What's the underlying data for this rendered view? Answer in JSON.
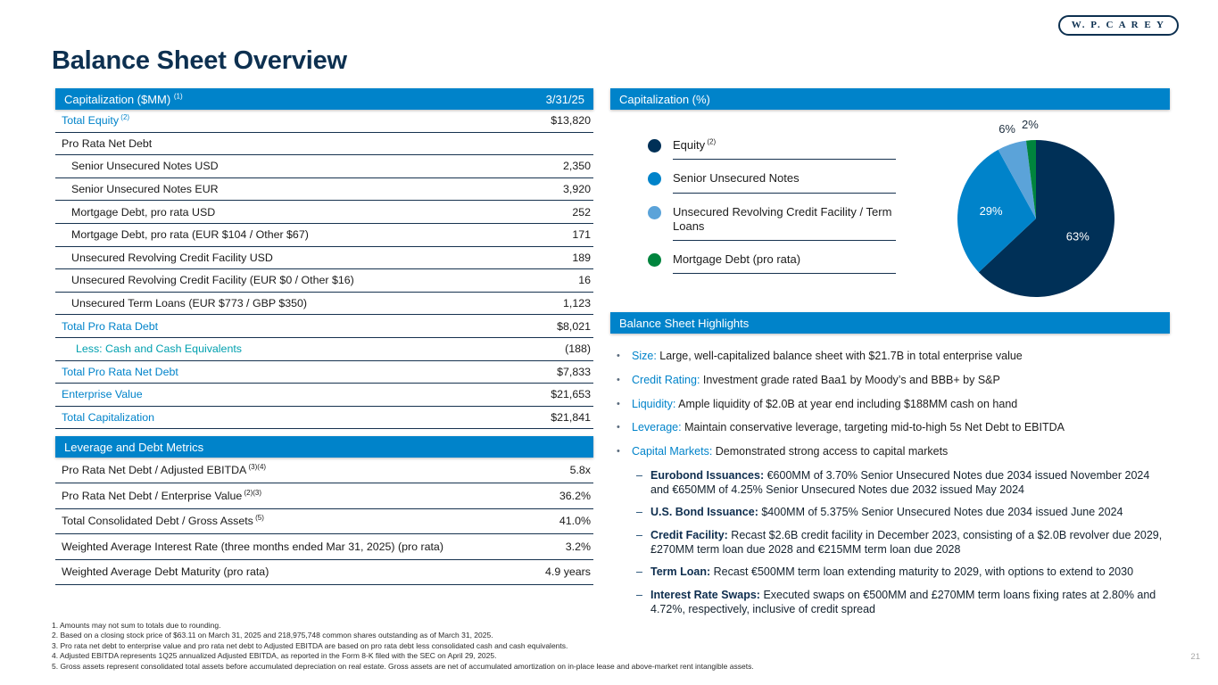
{
  "logo_text": "W. P. C A R E Y",
  "title": "Balance Sheet Overview",
  "page": {
    "number": "21"
  },
  "cap_table": {
    "title": "Capitalization ($MM)",
    "title_sup": "(1)",
    "date": "3/31/25",
    "rows": [
      {
        "label": "Total Equity",
        "sup": "(2)",
        "value": "$13,820",
        "style": "blue"
      },
      {
        "label": "Pro Rata Net Debt",
        "value": "",
        "style": "section"
      },
      {
        "label": "Senior Unsecured Notes USD",
        "value": "2,350",
        "style": "item"
      },
      {
        "label": "Senior Unsecured Notes EUR",
        "value": "3,920",
        "style": "item"
      },
      {
        "label": "Mortgage Debt, pro rata USD",
        "value": "252",
        "style": "item"
      },
      {
        "label": "Mortgage Debt, pro rata (EUR $104 / Other $67)",
        "value": "171",
        "style": "item"
      },
      {
        "label": "Unsecured Revolving Credit Facility USD",
        "value": "189",
        "style": "item"
      },
      {
        "label": "Unsecured Revolving Credit Facility (EUR $0 / Other $16)",
        "value": "16",
        "style": "item"
      },
      {
        "label": "Unsecured Term Loans (EUR $773 / GBP $350)",
        "value": "1,123",
        "style": "item"
      },
      {
        "label": "Total Pro Rata Debt",
        "value": "$8,021",
        "style": "blue"
      },
      {
        "label": "Less: Cash and Cash Equivalents",
        "value": "(188)",
        "style": "teal"
      },
      {
        "label": "Total Pro Rata Net Debt",
        "value": "$7,833",
        "style": "blue"
      },
      {
        "label": "Enterprise Value",
        "value": "$21,653",
        "style": "blue"
      },
      {
        "label": "Total Capitalization",
        "value": "$21,841",
        "style": "blue"
      }
    ]
  },
  "leverage_table": {
    "title": "Leverage and Debt Metrics",
    "rows": [
      {
        "label": "Pro Rata Net Debt / Adjusted EBITDA",
        "sup": "(3)(4)",
        "value": "5.8x"
      },
      {
        "label": "Pro Rata Net Debt / Enterprise Value",
        "sup": "(2)(3)",
        "value": "36.2%"
      },
      {
        "label": "Total Consolidated Debt / Gross Assets",
        "sup": "(5)",
        "value": "41.0%"
      },
      {
        "label": "Weighted Average Interest Rate (three months ended Mar 31, 2025) (pro rata)",
        "value": "3.2%"
      },
      {
        "label": "Weighted Average Debt Maturity (pro rata)",
        "value": "4.9 years"
      }
    ]
  },
  "cap_pct": {
    "title": "Capitalization (%)",
    "legend": [
      {
        "label": "Equity",
        "sup": "(2)",
        "color": "#003057"
      },
      {
        "label": "Senior Unsecured Notes",
        "color": "#0083ca"
      },
      {
        "label": "Unsecured Revolving Credit Facility / Term Loans",
        "color": "#5ba3d9"
      },
      {
        "label": "Mortgage Debt (pro rata)",
        "color": "#00843d"
      }
    ]
  },
  "chart_data": {
    "type": "pie",
    "title": "Capitalization (%)",
    "labels": [
      "Equity",
      "Senior Unsecured Notes",
      "Unsecured Revolving Credit Facility / Term Loans",
      "Mortgage Debt (pro rata)"
    ],
    "values": [
      63,
      29,
      6,
      2
    ],
    "value_labels": [
      "63%",
      "29%",
      "6%",
      "2%"
    ],
    "colors": [
      "#003057",
      "#0083ca",
      "#5ba3d9",
      "#00843d"
    ],
    "legend_position": "left"
  },
  "highlights": {
    "title": "Balance Sheet Highlights",
    "bullets": [
      {
        "lead": "Size:",
        "text": "Large, well-capitalized balance sheet with $21.7B in total enterprise value"
      },
      {
        "lead": "Credit Rating:",
        "text": "Investment grade rated Baa1 by Moody’s and BBB+ by S&P"
      },
      {
        "lead": "Liquidity:",
        "text": "Ample liquidity of $2.0B at year end including $188MM cash on hand"
      },
      {
        "lead": "Leverage:",
        "text": "Maintain conservative leverage, targeting mid-to-high 5s Net Debt to EBITDA"
      },
      {
        "lead": "Capital Markets:",
        "text": "Demonstrated strong access to capital markets",
        "sub": [
          {
            "lead": "Eurobond Issuances:",
            "text": "€600MM of 3.70% Senior Unsecured Notes due 2034 issued November 2024 and €650MM of 4.25% Senior Unsecured Notes due 2032 issued May 2024"
          },
          {
            "lead": "U.S. Bond Issuance:",
            "text": "$400MM of 5.375% Senior Unsecured Notes due 2034 issued June 2024"
          },
          {
            "lead": "Credit Facility:",
            "text": "Recast $2.6B credit facility in December 2023, consisting of a $2.0B revolver due 2029, £270MM term loan due 2028 and €215MM term loan due 2028"
          },
          {
            "lead": "Term Loan:",
            "text": "Recast €500MM term loan extending maturity to 2029, with options to extend to 2030"
          },
          {
            "lead": "Interest Rate Swaps:",
            "text": "Executed swaps on €500MM and £270MM term loans fixing rates at 2.80% and 4.72%, respectively, inclusive of credit spread"
          }
        ]
      }
    ]
  },
  "footnotes": [
    "1. Amounts may not sum to totals due to rounding.",
    "2. Based on a closing stock price of $63.11 on March 31, 2025 and 218,975,748 common shares outstanding as of March 31, 2025.",
    "3. Pro rata net debt to enterprise value and pro rata net debt to Adjusted EBITDA are based on pro rata debt less consolidated cash and cash equivalents.",
    "4. Adjusted EBITDA represents 1Q25 annualized Adjusted EBITDA, as reported in the Form 8-K filed with the SEC on April 29, 2025.",
    "5. Gross assets represent consolidated total assets before accumulated depreciation on real estate. Gross assets are net of accumulated amortization on in-place lease and above-market rent intangible assets."
  ]
}
